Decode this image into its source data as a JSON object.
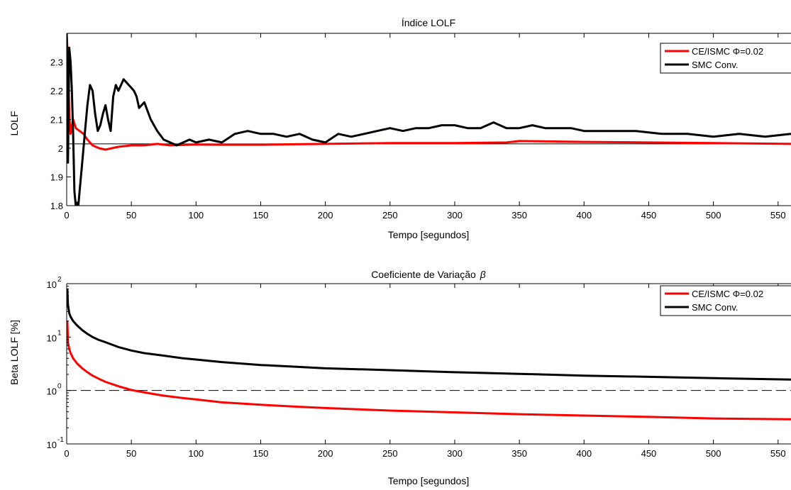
{
  "figure": {
    "background": "#ffffff",
    "axes_color": "#000000"
  },
  "chart_data": [
    {
      "type": "line",
      "title": "Índice LOLF",
      "xlabel": "Tempo [segundos]",
      "ylabel": "LOLF",
      "xlim": [
        0,
        560
      ],
      "ylim": [
        1.8,
        2.4
      ],
      "xticks": [
        0,
        50,
        100,
        150,
        200,
        250,
        300,
        350,
        400,
        450,
        500,
        550
      ],
      "xtick_labels": [
        "0",
        "50",
        "100",
        "150",
        "200",
        "250",
        "300",
        "350",
        "400",
        "450",
        "500",
        "550"
      ],
      "yticks": [
        1.8,
        1.9,
        2.0,
        2.1,
        2.2,
        2.3
      ],
      "ytick_labels": [
        "1.8",
        "1.9",
        "2",
        "2.1",
        "2.2",
        "2.3"
      ],
      "grid": false,
      "legend_position": "top-right",
      "reference_line": {
        "y": 2.015,
        "style": "solid-thin",
        "color": "#000000"
      },
      "series": [
        {
          "name": "CE/ISMC Φ=0.02",
          "color": "#ff0000",
          "x": [
            0,
            1,
            2,
            3,
            5,
            7,
            10,
            13,
            16,
            20,
            25,
            30,
            35,
            40,
            50,
            60,
            70,
            80,
            100,
            120,
            150,
            200,
            250,
            300,
            340,
            350,
            400,
            450,
            500,
            560
          ],
          "y": [
            2.4,
            2.3,
            2.12,
            2.05,
            2.1,
            2.07,
            2.06,
            2.05,
            2.03,
            2.01,
            2.0,
            1.995,
            2.0,
            2.005,
            2.01,
            2.01,
            2.015,
            2.01,
            2.013,
            2.012,
            2.012,
            2.015,
            2.018,
            2.018,
            2.02,
            2.025,
            2.022,
            2.02,
            2.018,
            2.015
          ]
        },
        {
          "name": "SMC Conv.",
          "color": "#000000",
          "x": [
            0,
            1,
            2,
            3,
            4,
            5,
            6,
            7,
            8,
            9,
            10,
            12,
            14,
            16,
            18,
            20,
            22,
            24,
            26,
            28,
            30,
            32,
            34,
            36,
            38,
            40,
            42,
            44,
            46,
            48,
            50,
            52,
            54,
            56,
            58,
            60,
            65,
            70,
            75,
            80,
            85,
            90,
            95,
            100,
            110,
            120,
            130,
            140,
            150,
            160,
            170,
            180,
            190,
            200,
            210,
            220,
            230,
            240,
            250,
            260,
            270,
            280,
            290,
            300,
            310,
            320,
            330,
            340,
            350,
            360,
            370,
            380,
            390,
            400,
            420,
            440,
            460,
            480,
            500,
            520,
            540,
            560
          ],
          "y": [
            2.4,
            1.95,
            2.35,
            2.3,
            2.2,
            2.05,
            1.85,
            1.8,
            1.81,
            1.8,
            1.85,
            1.95,
            2.05,
            2.15,
            2.22,
            2.2,
            2.12,
            2.06,
            2.08,
            2.12,
            2.15,
            2.1,
            2.06,
            2.18,
            2.22,
            2.2,
            2.22,
            2.24,
            2.23,
            2.22,
            2.21,
            2.2,
            2.18,
            2.14,
            2.15,
            2.16,
            2.1,
            2.06,
            2.03,
            2.02,
            2.01,
            2.02,
            2.03,
            2.02,
            2.03,
            2.02,
            2.05,
            2.06,
            2.05,
            2.05,
            2.04,
            2.05,
            2.03,
            2.02,
            2.05,
            2.04,
            2.05,
            2.06,
            2.07,
            2.06,
            2.07,
            2.07,
            2.08,
            2.08,
            2.07,
            2.07,
            2.09,
            2.07,
            2.07,
            2.08,
            2.07,
            2.07,
            2.07,
            2.06,
            2.06,
            2.06,
            2.05,
            2.05,
            2.04,
            2.05,
            2.04,
            2.05
          ]
        }
      ]
    },
    {
      "type": "line",
      "title": "Coeficiente de Variação",
      "title_symbol": "β",
      "xlabel": "Tempo [segundos]",
      "ylabel": "Beta LOLF [%]",
      "yscale": "log",
      "xlim": [
        0,
        560
      ],
      "ylim": [
        0.1,
        100
      ],
      "xticks": [
        0,
        50,
        100,
        150,
        200,
        250,
        300,
        350,
        400,
        450,
        500,
        550
      ],
      "xtick_labels": [
        "0",
        "50",
        "100",
        "150",
        "200",
        "250",
        "300",
        "350",
        "400",
        "450",
        "500",
        "550"
      ],
      "yticks": [
        0.1,
        1,
        10,
        100
      ],
      "ytick_labels": [
        {
          "base": "10",
          "exp": "-1"
        },
        {
          "base": "10",
          "exp": "0"
        },
        {
          "base": "10",
          "exp": "1"
        },
        {
          "base": "10",
          "exp": "2"
        }
      ],
      "grid": false,
      "legend_position": "top-right",
      "reference_line": {
        "y": 1,
        "style": "dashed",
        "color": "#000000"
      },
      "series": [
        {
          "name": "CE/ISMC Φ=0.02",
          "color": "#ff0000",
          "x": [
            0.5,
            1,
            2,
            3,
            5,
            8,
            12,
            16,
            20,
            25,
            30,
            40,
            50,
            60,
            75,
            90,
            100,
            120,
            150,
            175,
            200,
            250,
            300,
            350,
            400,
            450,
            500,
            560
          ],
          "y": [
            20,
            8,
            6,
            5,
            4,
            3.2,
            2.6,
            2.2,
            1.9,
            1.65,
            1.45,
            1.2,
            1.02,
            0.92,
            0.8,
            0.72,
            0.68,
            0.6,
            0.54,
            0.5,
            0.47,
            0.42,
            0.39,
            0.36,
            0.34,
            0.32,
            0.3,
            0.29
          ]
        },
        {
          "name": "SMC Conv.",
          "color": "#000000",
          "x": [
            0.5,
            1,
            2,
            3,
            5,
            8,
            12,
            16,
            20,
            25,
            30,
            40,
            50,
            60,
            75,
            90,
            100,
            120,
            150,
            175,
            200,
            250,
            300,
            350,
            400,
            450,
            500,
            560
          ],
          "y": [
            80,
            40,
            28,
            24,
            20,
            16.5,
            13.5,
            11.5,
            10,
            8.8,
            8,
            6.5,
            5.6,
            5,
            4.5,
            4,
            3.8,
            3.4,
            3,
            2.8,
            2.6,
            2.4,
            2.2,
            2.05,
            1.9,
            1.8,
            1.7,
            1.6
          ]
        }
      ]
    }
  ]
}
